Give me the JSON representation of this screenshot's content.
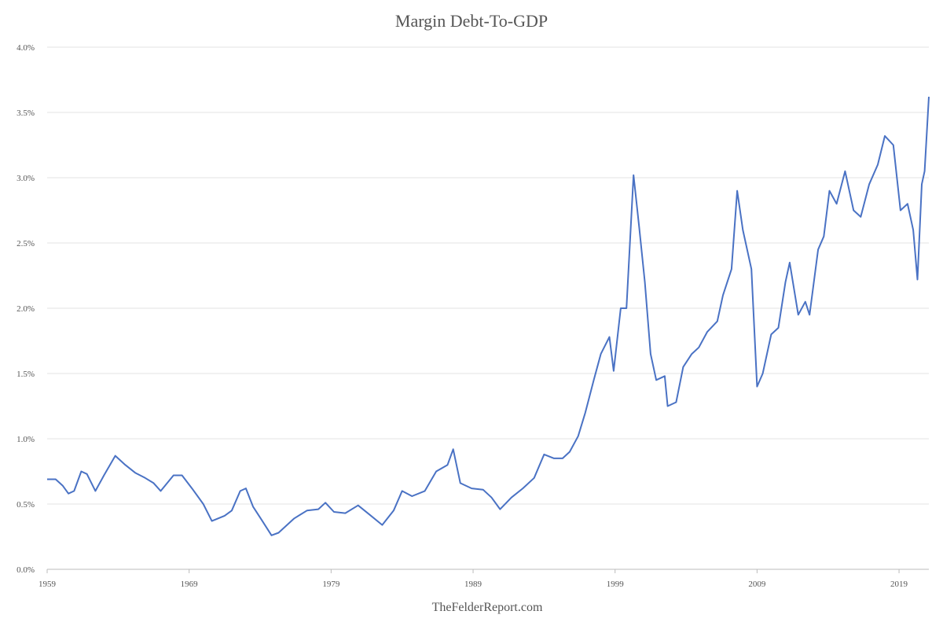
{
  "chart_data": {
    "type": "line",
    "title": "Margin Debt-To-GDP",
    "source": "TheFelderReport.com",
    "x": [
      1959.0,
      1959.6,
      1960.1,
      1960.5,
      1960.9,
      1961.4,
      1961.8,
      1962.4,
      1963.0,
      1963.8,
      1964.5,
      1965.2,
      1965.9,
      1966.5,
      1967.0,
      1967.9,
      1968.5,
      1969.2,
      1970.0,
      1970.6,
      1971.5,
      1972.0,
      1972.6,
      1973.0,
      1973.5,
      1974.1,
      1974.8,
      1975.3,
      1975.7,
      1976.4,
      1977.3,
      1978.1,
      1978.6,
      1979.2,
      1980.0,
      1980.9,
      1981.7,
      1982.6,
      1983.4,
      1984.0,
      1984.7,
      1985.6,
      1986.4,
      1987.2,
      1987.6,
      1988.1,
      1988.9,
      1989.7,
      1990.3,
      1990.9,
      1991.7,
      1992.5,
      1993.3,
      1994.0,
      1994.7,
      1995.3,
      1995.8,
      1996.4,
      1996.9,
      1997.5,
      1998.0,
      1998.6,
      1998.9,
      1999.4,
      1999.8,
      2000.3,
      2000.7,
      2001.1,
      2001.5,
      2001.9,
      2002.5,
      2002.7,
      2003.3,
      2003.8,
      2004.4,
      2004.9,
      2005.5,
      2006.2,
      2006.6,
      2007.2,
      2007.6,
      2008.0,
      2008.6,
      2009.0,
      2009.4,
      2010.0,
      2010.5,
      2011.0,
      2011.3,
      2011.9,
      2012.4,
      2012.7,
      2013.3,
      2013.7,
      2014.1,
      2014.6,
      2015.2,
      2015.8,
      2016.3,
      2016.9,
      2017.5,
      2018.0,
      2018.6,
      2019.1,
      2019.6,
      2020.0,
      2020.3,
      2020.6,
      2020.8,
      2021.1
    ],
    "series": [
      {
        "name": "Margin Debt-To-GDP",
        "color": "#4a72c4",
        "values": [
          0.69,
          0.69,
          0.64,
          0.58,
          0.6,
          0.75,
          0.73,
          0.6,
          0.72,
          0.87,
          0.8,
          0.74,
          0.7,
          0.66,
          0.6,
          0.72,
          0.72,
          0.62,
          0.5,
          0.37,
          0.41,
          0.45,
          0.6,
          0.62,
          0.48,
          0.38,
          0.26,
          0.28,
          0.32,
          0.39,
          0.45,
          0.46,
          0.51,
          0.44,
          0.43,
          0.49,
          0.42,
          0.34,
          0.45,
          0.6,
          0.56,
          0.6,
          0.75,
          0.8,
          0.92,
          0.66,
          0.62,
          0.61,
          0.55,
          0.46,
          0.55,
          0.62,
          0.7,
          0.88,
          0.85,
          0.85,
          0.9,
          1.02,
          1.2,
          1.45,
          1.65,
          1.78,
          1.52,
          2.0,
          2.0,
          3.02,
          2.62,
          2.2,
          1.65,
          1.45,
          1.48,
          1.25,
          1.28,
          1.55,
          1.65,
          1.7,
          1.82,
          1.9,
          2.1,
          2.3,
          2.9,
          2.6,
          2.3,
          1.4,
          1.5,
          1.8,
          1.85,
          2.2,
          2.35,
          1.95,
          2.05,
          1.95,
          2.45,
          2.55,
          2.9,
          2.8,
          3.05,
          2.75,
          2.7,
          2.95,
          3.1,
          3.32,
          3.25,
          2.75,
          2.8,
          2.6,
          2.22,
          2.95,
          3.05,
          3.62
        ]
      }
    ],
    "xlim": [
      1959,
      2021.1
    ],
    "xticks": [
      1959,
      1969,
      1979,
      1989,
      1999,
      2009,
      2019
    ],
    "ylim": [
      0,
      4
    ],
    "yticks": [
      {
        "value": 0,
        "label": "0.0%"
      },
      {
        "value": 0.5,
        "label": "0.5%"
      },
      {
        "value": 1,
        "label": "1.0%"
      },
      {
        "value": 1.5,
        "label": "1.5%"
      },
      {
        "value": 2,
        "label": "2.0%"
      },
      {
        "value": 2.5,
        "label": "2.5%"
      },
      {
        "value": 3,
        "label": "3.0%"
      },
      {
        "value": 3.5,
        "label": "3.5%"
      },
      {
        "value": 4,
        "label": "4.0%"
      }
    ],
    "grid": true
  }
}
